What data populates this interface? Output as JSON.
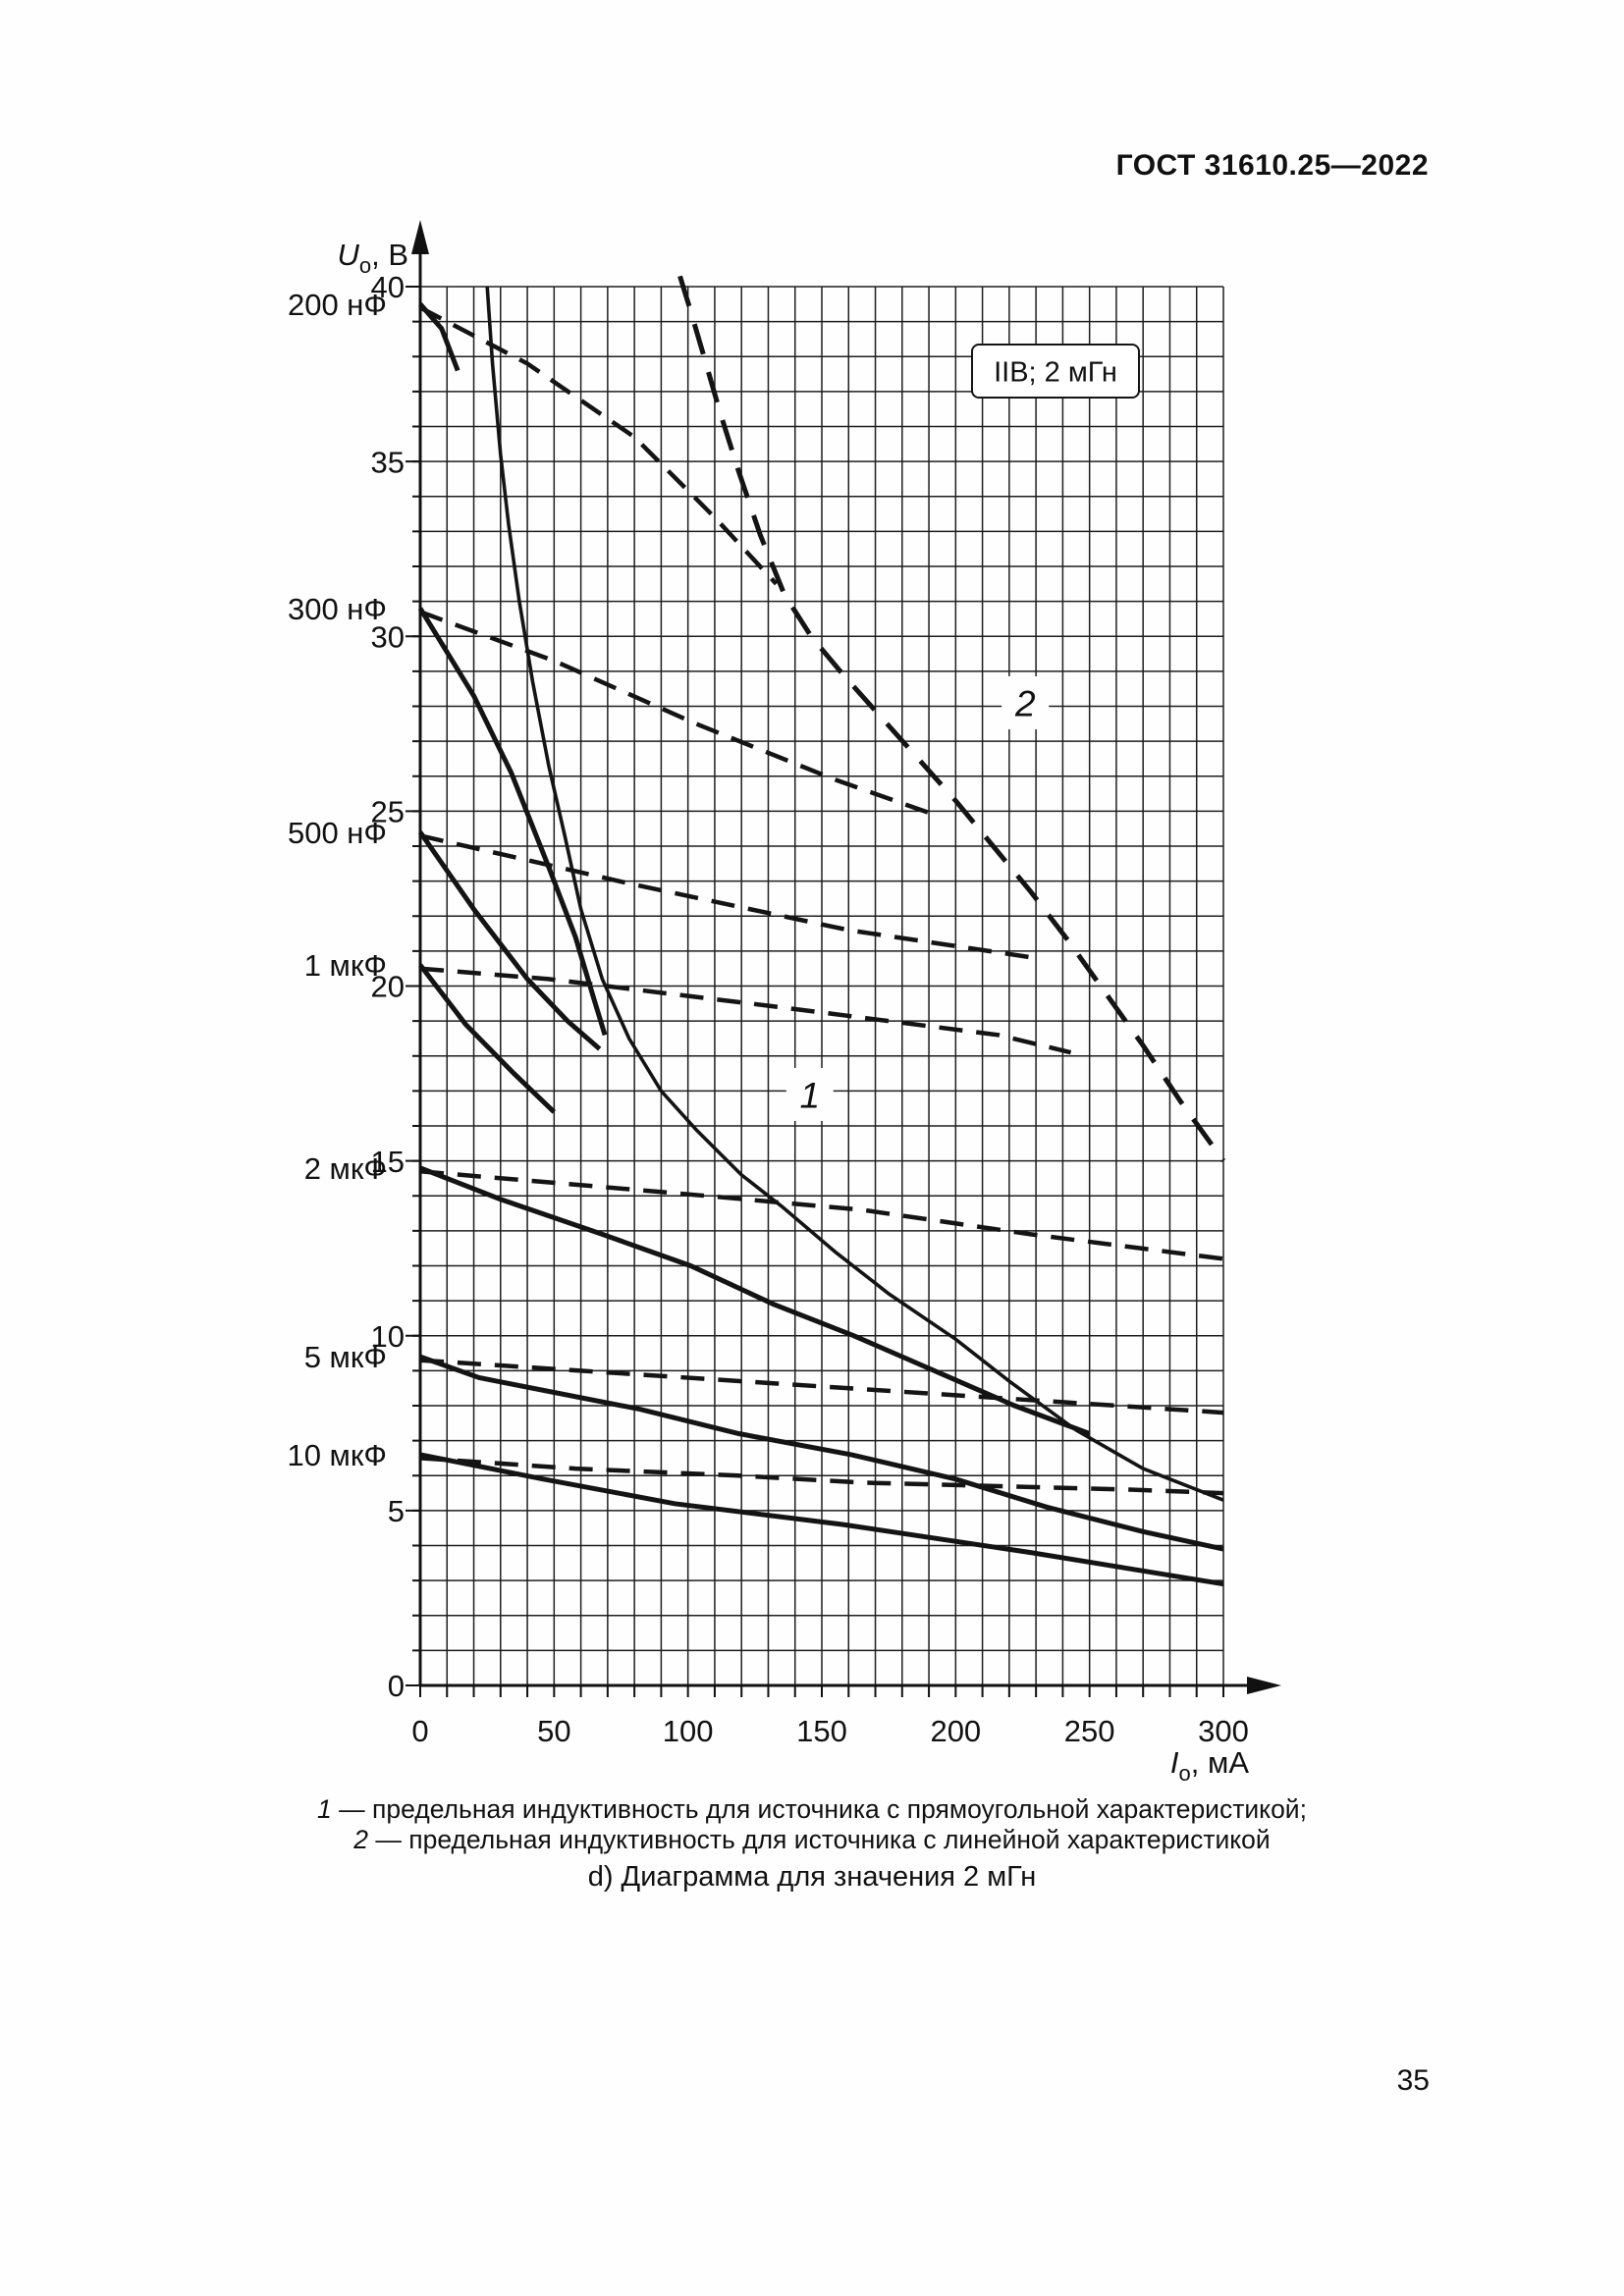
{
  "page": {
    "header": "ГОСТ 31610.25—2022",
    "page_number": "35"
  },
  "legend": {
    "items": [
      {
        "num": "1",
        "text": " — предельная индуктивность для источника с прямоугольной характеристикой;"
      },
      {
        "num": "2",
        "text": " — предельная индуктивность для источника с линейной характеристикой"
      }
    ]
  },
  "caption": "d) Диаграмма для значения 2 мГн",
  "chart_data": {
    "type": "line",
    "annotation_box": "IIB; 2 мГн",
    "xlabel": {
      "symbol": "I",
      "sub": "о",
      "unit": ", мА"
    },
    "ylabel": {
      "symbol": "U",
      "sub": "о",
      "unit": ", В"
    },
    "xlim": [
      0,
      300
    ],
    "ylim": [
      0,
      40
    ],
    "x_ticks": [
      0,
      50,
      100,
      150,
      200,
      250,
      300
    ],
    "y_ticks": [
      0,
      5,
      10,
      15,
      20,
      25,
      30,
      35,
      40
    ],
    "x_minor_step": 10,
    "y_minor_step": 1,
    "grid": true,
    "capacitance_series": [
      {
        "label": "200 нФ",
        "solid": [
          [
            0,
            39.5
          ],
          [
            8,
            38.8
          ],
          [
            14,
            37.6
          ]
        ],
        "dashed": [
          [
            0,
            39.4
          ],
          [
            40,
            37.8
          ],
          [
            80,
            35.7
          ],
          [
            110,
            33.4
          ],
          [
            133,
            31.5
          ]
        ]
      },
      {
        "label": "300 нФ",
        "solid": [
          [
            0,
            30.8
          ],
          [
            20,
            28.3
          ],
          [
            34,
            26.1
          ],
          [
            48,
            23.4
          ],
          [
            58,
            21.4
          ],
          [
            65,
            19.6
          ],
          [
            69,
            18.6
          ]
        ],
        "dashed": [
          [
            0,
            30.7
          ],
          [
            50,
            29.3
          ],
          [
            103,
            27.5
          ],
          [
            155,
            25.9
          ],
          [
            192,
            24.9
          ]
        ]
      },
      {
        "label": "500 нФ",
        "solid": [
          [
            0,
            24.4
          ],
          [
            20,
            22.2
          ],
          [
            40,
            20.2
          ],
          [
            55,
            19.0
          ],
          [
            67,
            18.2
          ]
        ],
        "dashed": [
          [
            0,
            24.3
          ],
          [
            80,
            22.9
          ],
          [
            160,
            21.6
          ],
          [
            230,
            20.8
          ]
        ]
      },
      {
        "label": "1 мкФ",
        "solid": [
          [
            0,
            20.6
          ],
          [
            17,
            18.9
          ],
          [
            35,
            17.5
          ],
          [
            50,
            16.4
          ]
        ],
        "dashed": [
          [
            0,
            20.5
          ],
          [
            48,
            20.2
          ],
          [
            134,
            19.4
          ],
          [
            216,
            18.6
          ],
          [
            243,
            18.1
          ]
        ]
      },
      {
        "label": "2 мкФ",
        "solid": [
          [
            0,
            14.8
          ],
          [
            30,
            13.9
          ],
          [
            68,
            12.9
          ],
          [
            101,
            12.0
          ],
          [
            132,
            10.9
          ],
          [
            162,
            10.0
          ],
          [
            195,
            8.9
          ],
          [
            222,
            8.0
          ],
          [
            250,
            7.2
          ]
        ],
        "dashed": [
          [
            0,
            14.7
          ],
          [
            46,
            14.4
          ],
          [
            107,
            14.0
          ],
          [
            165,
            13.6
          ],
          [
            228,
            12.9
          ],
          [
            300,
            12.2
          ]
        ]
      },
      {
        "label": "5 мкФ",
        "solid": [
          [
            0,
            9.4
          ],
          [
            22,
            8.8
          ],
          [
            82,
            7.9
          ],
          [
            119,
            7.2
          ],
          [
            161,
            6.6
          ],
          [
            200,
            5.9
          ],
          [
            234,
            5.1
          ],
          [
            270,
            4.4
          ],
          [
            300,
            3.9
          ]
        ],
        "dashed": [
          [
            0,
            9.3
          ],
          [
            60,
            9.0
          ],
          [
            120,
            8.7
          ],
          [
            180,
            8.4
          ],
          [
            240,
            8.1
          ],
          [
            300,
            7.8
          ]
        ]
      },
      {
        "label": "10 мкФ",
        "solid": [
          [
            0,
            6.6
          ],
          [
            46,
            5.9
          ],
          [
            95,
            5.2
          ],
          [
            158,
            4.6
          ],
          [
            228,
            3.8
          ],
          [
            300,
            2.9
          ]
        ],
        "dashed": [
          [
            0,
            6.5
          ],
          [
            58,
            6.2
          ],
          [
            119,
            6.0
          ],
          [
            165,
            5.8
          ],
          [
            265,
            5.6
          ],
          [
            300,
            5.5
          ]
        ]
      }
    ],
    "limit_curves": [
      {
        "label": "1",
        "style": "solid",
        "points": [
          [
            25,
            40
          ],
          [
            27,
            37.8
          ],
          [
            30,
            35.2
          ],
          [
            33,
            33.2
          ],
          [
            37,
            31.0
          ],
          [
            42,
            28.7
          ],
          [
            48,
            26.3
          ],
          [
            54,
            24.3
          ],
          [
            60,
            22.2
          ],
          [
            68,
            20.2
          ],
          [
            78,
            18.5
          ],
          [
            90,
            17.0
          ],
          [
            103,
            15.9
          ],
          [
            120,
            14.6
          ],
          [
            135,
            13.7
          ],
          [
            155,
            12.4
          ],
          [
            175,
            11.2
          ],
          [
            200,
            9.9
          ],
          [
            220,
            8.7
          ],
          [
            245,
            7.3
          ],
          [
            270,
            6.2
          ],
          [
            300,
            5.3
          ]
        ],
        "label_pos": [
          145.5,
          16.9
        ]
      },
      {
        "label": "2",
        "style": "dashed",
        "points": [
          [
            97,
            40.3
          ],
          [
            101,
            39.3
          ],
          [
            106,
            38.0
          ],
          [
            112,
            36.4
          ],
          [
            119,
            34.7
          ],
          [
            127,
            32.9
          ],
          [
            136,
            31.2
          ],
          [
            146,
            30.0
          ],
          [
            158,
            28.9
          ],
          [
            172,
            27.7
          ],
          [
            186,
            26.5
          ],
          [
            200,
            25.3
          ],
          [
            214,
            24.0
          ],
          [
            228,
            22.7
          ],
          [
            242,
            21.3
          ],
          [
            256,
            19.8
          ],
          [
            270,
            18.3
          ],
          [
            284,
            16.7
          ],
          [
            300,
            15.0
          ]
        ],
        "label_pos": [
          226,
          28.1
        ]
      }
    ]
  }
}
